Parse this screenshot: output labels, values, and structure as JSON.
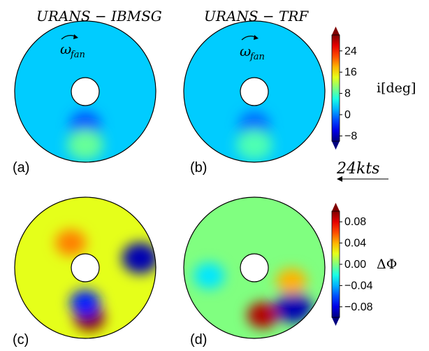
{
  "figure": {
    "titles": [
      "URANS − IBMSG",
      "URANS − TRF"
    ],
    "panel_labels": [
      "(a)",
      "(b)",
      "(c)",
      "(d)"
    ],
    "rotation_symbol": "ω",
    "rotation_subscript": "fan",
    "wind_label": "24kts"
  },
  "chart_data": [
    {
      "type": "heatmap",
      "title": "URANS − IBMSG",
      "panel": "(a)",
      "quantity": "i[deg]",
      "colorbar": {
        "label": "i[deg]",
        "range": [
          -10,
          30
        ],
        "ticks": [
          -8,
          0,
          8,
          16,
          24
        ],
        "tick_labels": [
          "−8",
          "0",
          "8",
          "16",
          "24"
        ],
        "colormap": "jet"
      },
      "features": [
        {
          "description": "dark blue minimum below hub",
          "angle_deg": 270,
          "radius_frac": 0.7,
          "value": -10
        },
        {
          "description": "blue band below hub",
          "angle_deg": 270,
          "radius_frac": 0.45,
          "value": -2
        },
        {
          "description": "green patch at bottom rim",
          "angle_deg": 270,
          "radius_frac": 0.92,
          "value": 9
        },
        {
          "description": "light blue background",
          "value": 3
        }
      ]
    },
    {
      "type": "heatmap",
      "title": "URANS − TRF",
      "panel": "(b)",
      "quantity": "i[deg]",
      "colorbar": {
        "label": "i[deg]",
        "range": [
          -10,
          30
        ],
        "ticks": [
          -8,
          0,
          8,
          16,
          24
        ],
        "tick_labels": [
          "−8",
          "0",
          "8",
          "16",
          "24"
        ],
        "colormap": "jet"
      },
      "features": [
        {
          "description": "dark blue minimum below hub",
          "angle_deg": 270,
          "radius_frac": 0.7,
          "value": -9
        },
        {
          "description": "blue band below hub",
          "angle_deg": 270,
          "radius_frac": 0.45,
          "value": -1
        },
        {
          "description": "green patch at bottom rim",
          "angle_deg": 270,
          "radius_frac": 0.92,
          "value": 8
        },
        {
          "description": "light blue background",
          "value": 3
        }
      ]
    },
    {
      "type": "heatmap",
      "panel": "(c)",
      "quantity": "ΔΦ",
      "colorbar": {
        "label": "ΔΦ",
        "range": [
          -0.1,
          0.1
        ],
        "ticks": [
          -0.08,
          -0.04,
          0.0,
          0.04,
          0.08
        ],
        "tick_labels": [
          "−0.08",
          "−0.04",
          "0.00",
          "0.04",
          "0.08"
        ],
        "colormap": "jet"
      },
      "features": [
        {
          "description": "dark red maximum at bottom rim",
          "angle_deg": 275,
          "radius_frac": 0.85,
          "value": 0.1
        },
        {
          "description": "blue streak below hub",
          "angle_deg": 270,
          "radius_frac": 0.5,
          "value": -0.07
        },
        {
          "description": "orange patch above-left of hub",
          "angle_deg": 120,
          "radius_frac": 0.35,
          "value": 0.05
        },
        {
          "description": "blue wedge at right rim",
          "angle_deg": 10,
          "radius_frac": 0.98,
          "value": -0.09
        },
        {
          "description": "yellow-green background",
          "value": 0.02
        }
      ]
    },
    {
      "type": "heatmap",
      "panel": "(d)",
      "quantity": "ΔΦ",
      "colorbar": {
        "label": "ΔΦ",
        "range": [
          -0.1,
          0.1
        ],
        "ticks": [
          -0.08,
          -0.04,
          0.0,
          0.04,
          0.08
        ],
        "tick_labels": [
          "−0.08",
          "−0.04",
          "0.00",
          "0.04",
          "0.08"
        ],
        "colormap": "jet"
      },
      "features": [
        {
          "description": "dark red maximum at bottom rim",
          "angle_deg": 280,
          "radius_frac": 0.8,
          "value": 0.09
        },
        {
          "description": "blue band at bottom-right rim",
          "angle_deg": 315,
          "radius_frac": 0.97,
          "value": -0.09
        },
        {
          "description": "blue patch at left",
          "angle_deg": 190,
          "radius_frac": 0.75,
          "value": -0.03
        },
        {
          "description": "yellow region at right",
          "angle_deg": 340,
          "radius_frac": 0.6,
          "value": 0.04
        },
        {
          "description": "cyan-green background",
          "value": 0.0
        }
      ]
    }
  ]
}
